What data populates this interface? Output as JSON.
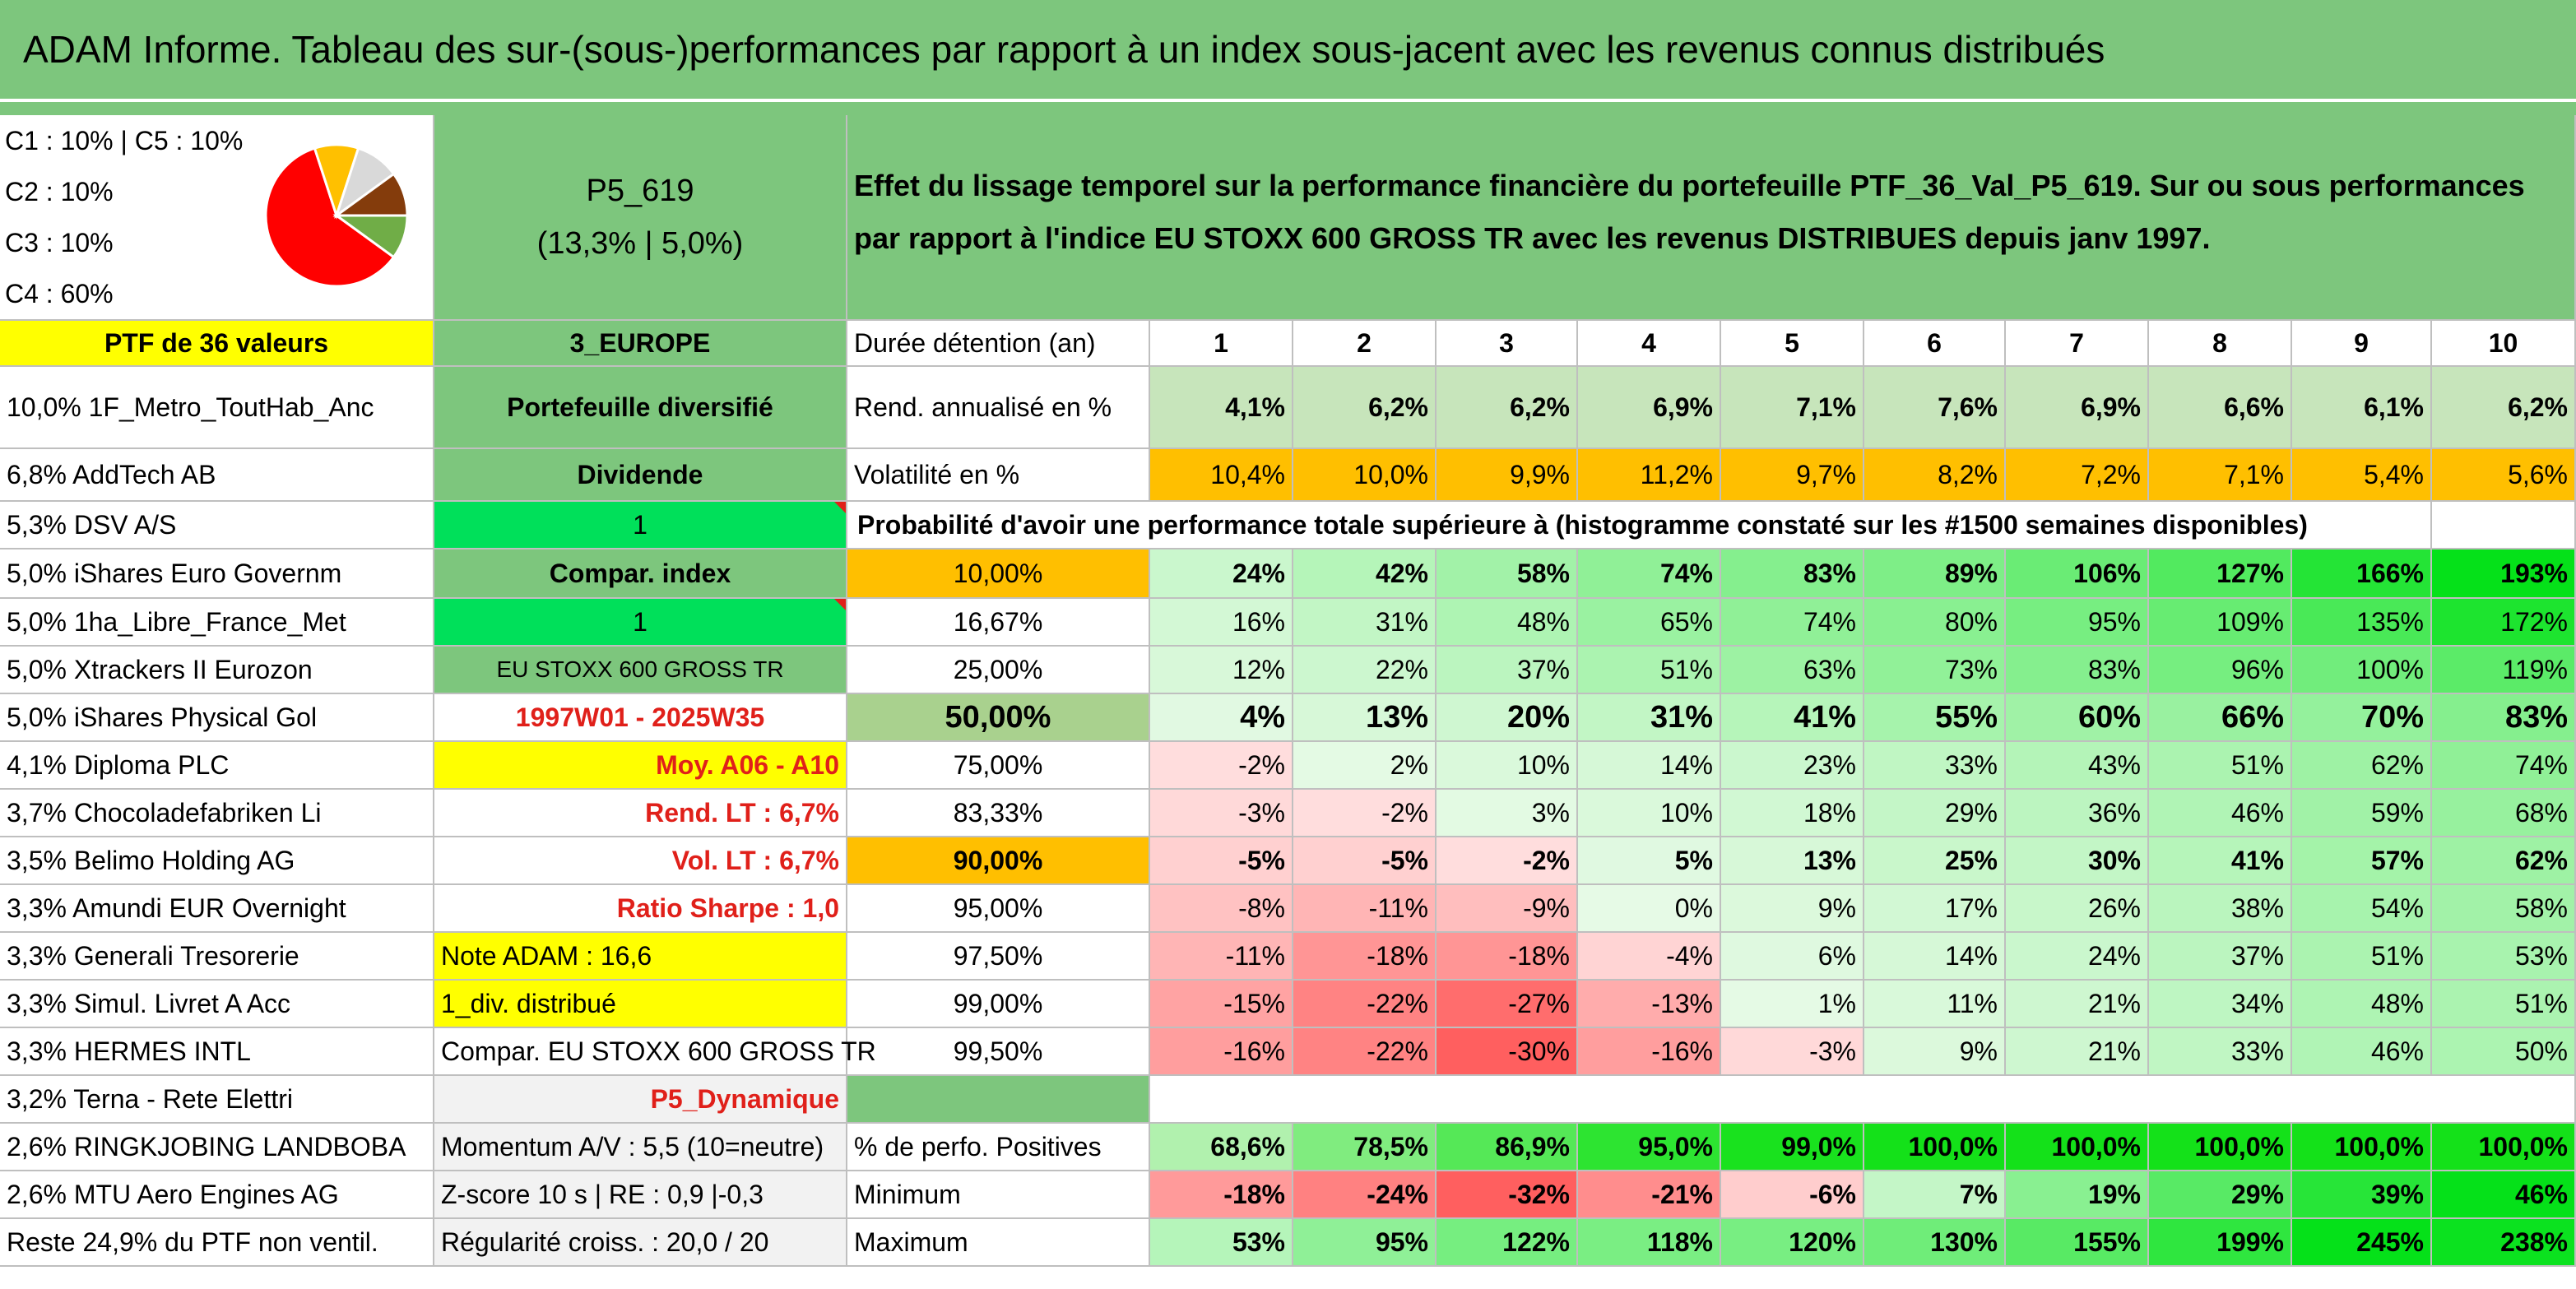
{
  "title": "ADAM Informe. Tableau des sur-(sous-)performances par rapport à un index sous-jacent avec les revenus connus distribués",
  "allocation": [
    "C1 : 10% | C5 : 10%",
    "C2 : 10%",
    "C3 : 10%",
    "C4 : 60%"
  ],
  "pie_slices": [
    {
      "label": "C4",
      "value": 60,
      "color": "#ff0000"
    },
    {
      "label": "C5",
      "value": 10,
      "color": "#ffc000"
    },
    {
      "label": "C1",
      "value": 10,
      "color": "#d9d9d9"
    },
    {
      "label": "C2",
      "value": 10,
      "color": "#843c0c"
    },
    {
      "label": "C3",
      "value": 10,
      "color": "#70ad47"
    }
  ],
  "portfolio": {
    "code": "P5_619",
    "sub": "(13,3% | 5,0%)"
  },
  "description": "Effet du lissage temporel sur la performance financière du portefeuille PTF_36_Val_P5_619. Sur ou sous performances par rapport à l'indice EU STOXX 600 GROSS TR avec les revenus DISTRIBUES depuis janv 1997.",
  "ptf_label": "PTF de 36 valeurs",
  "region": "3_EUROPE",
  "holding_label": "Durée détention (an)",
  "years": [
    "1",
    "2",
    "3",
    "4",
    "5",
    "6",
    "7",
    "8",
    "9",
    "10"
  ],
  "holdings": [
    "10,0% 1F_Metro_ToutHab_Anc",
    "6,8% AddTech AB",
    "5,3% DSV A/S",
    "5,0% iShares Euro Governm",
    "5,0% 1ha_Libre_France_Met",
    "5,0% Xtrackers II Eurozon",
    "5,0% iShares Physical Gol",
    "4,1% Diploma PLC",
    "3,7% Chocoladefabriken Li",
    "3,5% Belimo Holding AG",
    "3,3% Amundi EUR Overnight",
    "3,3% Generali Tresorerie",
    "3,3% Simul. Livret A Acc",
    "3,3% HERMES INTL",
    "3,2% Terna - Rete Elettri",
    "2,6% RINGKJOBING LANDBOBA",
    "2,6% MTU Aero Engines AG",
    "Reste 24,9% du PTF non ventil."
  ],
  "side": {
    "diversified": "Portefeuille diversifié",
    "dividend": "Dividende",
    "flag1": "1",
    "compar_index": "Compar. index",
    "flag2": "1",
    "index_name": "EU STOXX 600 GROSS TR",
    "period": "1997W01 - 2025W35",
    "moy": "Moy. A06 - A10",
    "rend_lt": "Rend. LT : 6,7%",
    "vol_lt": "Vol. LT : 6,7%",
    "sharpe": "Ratio Sharpe : 1,0",
    "note": "Note ADAM : 16,6",
    "div": "1_div. distribué",
    "compar_full": "Compar. EU STOXX 600 GROSS TR",
    "profile": "P5_Dynamique",
    "momentum": "Momentum A/V : 5,5 (10=neutre)",
    "zscore": "Z-score 10 s | RE : 0,9 |-0,3",
    "regularity": "Régularité croiss. : 20,0 / 20"
  },
  "rend": {
    "label": "Rend. annualisé en %",
    "values": [
      "4,1%",
      "6,2%",
      "6,2%",
      "6,9%",
      "7,1%",
      "7,6%",
      "6,9%",
      "6,6%",
      "6,1%",
      "6,2%"
    ]
  },
  "vol": {
    "label": "Volatilité en %",
    "values": [
      "10,4%",
      "10,0%",
      "9,9%",
      "11,2%",
      "9,7%",
      "8,2%",
      "7,2%",
      "7,1%",
      "5,4%",
      "5,6%"
    ]
  },
  "prob_header": "Probabilité d'avoir une performance totale supérieure à (histogramme constaté sur les #1500 semaines disponibles)",
  "prob_rows": [
    {
      "p": "10,00%",
      "v": [
        "24%",
        "42%",
        "58%",
        "74%",
        "83%",
        "89%",
        "106%",
        "127%",
        "166%",
        "193%"
      ]
    },
    {
      "p": "16,67%",
      "v": [
        "16%",
        "31%",
        "48%",
        "65%",
        "74%",
        "80%",
        "95%",
        "109%",
        "135%",
        "172%"
      ]
    },
    {
      "p": "25,00%",
      "v": [
        "12%",
        "22%",
        "37%",
        "51%",
        "63%",
        "73%",
        "83%",
        "96%",
        "100%",
        "119%"
      ]
    },
    {
      "p": "50,00%",
      "v": [
        "4%",
        "13%",
        "20%",
        "31%",
        "41%",
        "55%",
        "60%",
        "66%",
        "70%",
        "83%"
      ]
    },
    {
      "p": "75,00%",
      "v": [
        "-2%",
        "2%",
        "10%",
        "14%",
        "23%",
        "33%",
        "43%",
        "51%",
        "62%",
        "74%"
      ]
    },
    {
      "p": "83,33%",
      "v": [
        "-3%",
        "-2%",
        "3%",
        "10%",
        "18%",
        "29%",
        "36%",
        "46%",
        "59%",
        "68%"
      ]
    },
    {
      "p": "90,00%",
      "v": [
        "-5%",
        "-5%",
        "-2%",
        "5%",
        "13%",
        "25%",
        "30%",
        "41%",
        "57%",
        "62%"
      ]
    },
    {
      "p": "95,00%",
      "v": [
        "-8%",
        "-11%",
        "-9%",
        "0%",
        "9%",
        "17%",
        "26%",
        "38%",
        "54%",
        "58%"
      ]
    },
    {
      "p": "97,50%",
      "v": [
        "-11%",
        "-18%",
        "-18%",
        "-4%",
        "6%",
        "14%",
        "24%",
        "37%",
        "51%",
        "53%"
      ]
    },
    {
      "p": "99,00%",
      "v": [
        "-15%",
        "-22%",
        "-27%",
        "-13%",
        "1%",
        "11%",
        "21%",
        "34%",
        "48%",
        "51%"
      ]
    },
    {
      "p": "99,50%",
      "v": [
        "-16%",
        "-22%",
        "-30%",
        "-16%",
        "-3%",
        "9%",
        "21%",
        "33%",
        "46%",
        "50%"
      ]
    }
  ],
  "positive": {
    "label": "% de perfo. Positives",
    "values": [
      "68,6%",
      "78,5%",
      "86,9%",
      "95,0%",
      "99,0%",
      "100,0%",
      "100,0%",
      "100,0%",
      "100,0%",
      "100,0%"
    ]
  },
  "minimum": {
    "label": "Minimum",
    "values": [
      "-18%",
      "-24%",
      "-32%",
      "-21%",
      "-6%",
      "7%",
      "19%",
      "29%",
      "39%",
      "46%"
    ]
  },
  "maximum": {
    "label": "Maximum",
    "values": [
      "53%",
      "95%",
      "122%",
      "118%",
      "120%",
      "130%",
      "155%",
      "199%",
      "245%",
      "238%"
    ]
  }
}
